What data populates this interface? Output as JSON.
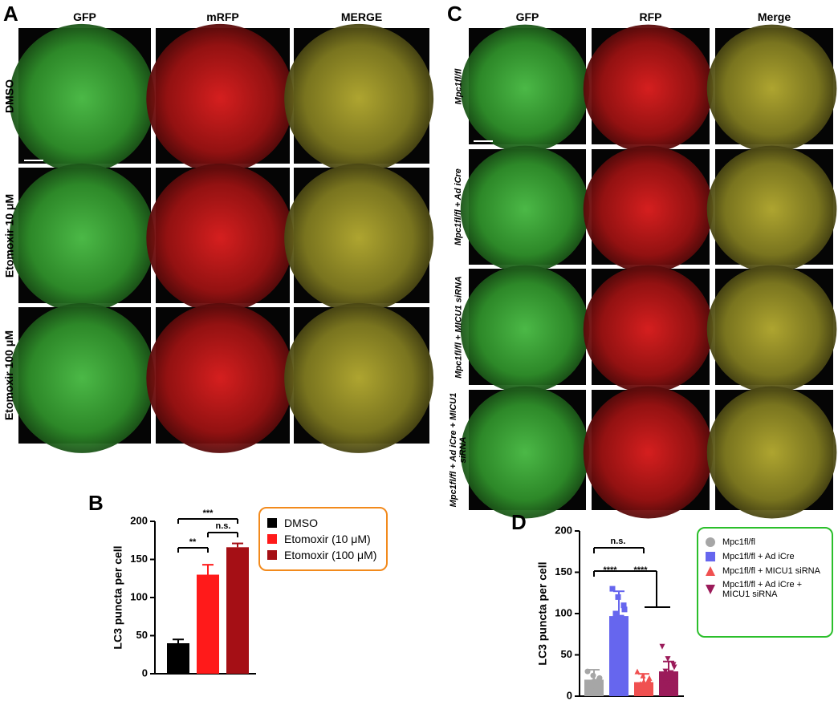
{
  "panel_a": {
    "letter": "A",
    "columns": [
      "GFP",
      "mRFP",
      "MERGE"
    ],
    "rows": [
      "DMSO",
      "Etomoxir 10 μM",
      "Etomoxir 100 μM"
    ]
  },
  "panel_c": {
    "letter": "C",
    "columns": [
      "GFP",
      "RFP",
      "Merge"
    ],
    "rows": [
      "Mpc1fl/fl",
      "Mpc1fl/fl + Ad iCre",
      "Mpc1fl/fl + MICU1 siRNA",
      "Mpc1fl/fl + Ad iCre + MICU1 siRNA"
    ]
  },
  "chart_data": [
    {
      "type": "bar",
      "letter": "B",
      "ylabel": "LC3 puncta per cell",
      "ylim": [
        0,
        200
      ],
      "yticks": [
        0,
        50,
        100,
        150,
        200
      ],
      "series": [
        {
          "name": "DMSO",
          "color": "#000000",
          "marker": "square",
          "values": [
            40
          ],
          "errors": [
            5
          ]
        },
        {
          "name": "Etomoxir (10 μM)",
          "color": "#ff1a1a",
          "marker": "square",
          "values": [
            130
          ],
          "errors": [
            13
          ]
        },
        {
          "name": "Etomoxir (100 μM)",
          "color": "#a50f15",
          "marker": "square",
          "values": [
            166
          ],
          "errors": [
            5
          ]
        }
      ],
      "annotations": [
        "**",
        "***",
        "n.s."
      ],
      "legend_border": "#f28a1c"
    },
    {
      "type": "bar",
      "letter": "D",
      "ylabel": "LC3 puncta per cell",
      "ylim": [
        0,
        200
      ],
      "yticks": [
        0,
        50,
        100,
        150,
        200
      ],
      "series": [
        {
          "name": "Mpc1fl/fl",
          "color": "#a6a6a6",
          "marker": "circle",
          "values": [
            20
          ],
          "errors": [
            12
          ],
          "points": [
            30,
            25,
            20,
            15,
            10,
            8,
            18,
            22,
            5,
            12
          ]
        },
        {
          "name": "Mpc1fl/fl + Ad iCre",
          "color": "#6666ee",
          "marker": "square",
          "values": [
            97
          ],
          "errors": [
            30
          ],
          "points": [
            130,
            120,
            110,
            100,
            95,
            90,
            85,
            105,
            80,
            75
          ]
        },
        {
          "name": "Mpc1fl/fl + MICU1 siRNA",
          "color": "#f05050",
          "marker": "triangle",
          "values": [
            17
          ],
          "errors": [
            10
          ],
          "points": [
            30,
            25,
            20,
            15,
            10,
            8,
            18,
            22,
            5,
            12
          ]
        },
        {
          "name": "Mpc1fl/fl + Ad iCre + MICU1 siRNA",
          "color": "#9b1b5a",
          "marker": "triangle-down",
          "values": [
            30
          ],
          "errors": [
            12
          ],
          "points": [
            60,
            45,
            38,
            30,
            28,
            25,
            20,
            35,
            15,
            10
          ]
        }
      ],
      "annotations": [
        "n.s.",
        "****",
        "****"
      ],
      "legend_border": "#2bbf2b"
    }
  ]
}
